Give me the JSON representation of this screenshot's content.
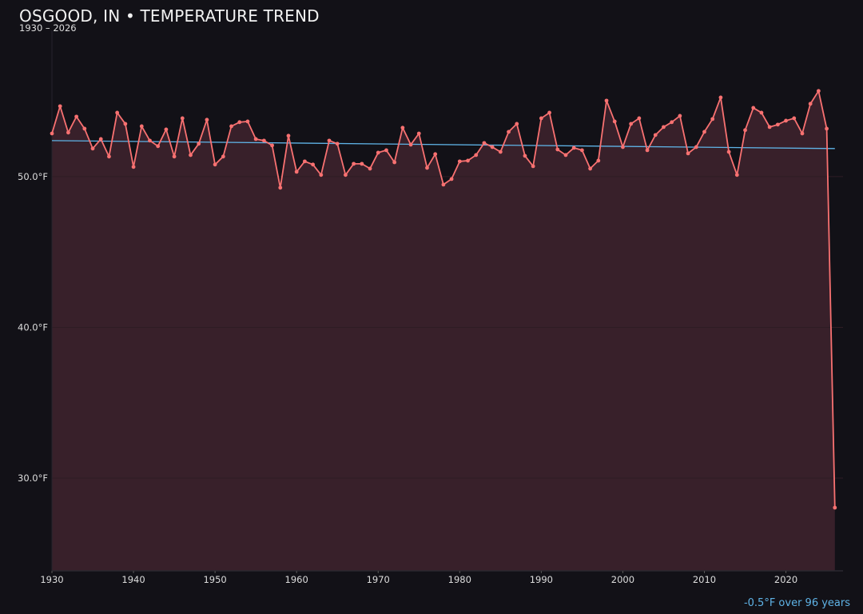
{
  "chart_data": {
    "type": "line",
    "title": "OSGOOD, IN • TEMPERATURE TREND",
    "subtitle": "1930 – 2026",
    "annotation": "-0.5°F over 96 years",
    "xlabel": "",
    "ylabel": "",
    "xlim": [
      1930,
      2027
    ],
    "ylim": [
      23.85,
      59.7
    ],
    "x_ticks": [
      "1930",
      "1940",
      "1950",
      "1960",
      "1970",
      "1980",
      "1990",
      "2000",
      "2010",
      "2020"
    ],
    "y_ticks": [
      {
        "value": 50,
        "label": "50.0°F"
      },
      {
        "value": 40,
        "label": "40.0°F"
      },
      {
        "value": 30,
        "label": "30.0°F"
      }
    ],
    "grid": "horizontal",
    "x": [
      1930,
      1931,
      1932,
      1933,
      1934,
      1935,
      1936,
      1937,
      1938,
      1939,
      1940,
      1941,
      1942,
      1943,
      1944,
      1945,
      1946,
      1947,
      1948,
      1949,
      1950,
      1951,
      1952,
      1953,
      1954,
      1955,
      1956,
      1957,
      1958,
      1959,
      1960,
      1961,
      1962,
      1963,
      1964,
      1965,
      1966,
      1967,
      1968,
      1969,
      1970,
      1971,
      1972,
      1973,
      1974,
      1975,
      1976,
      1977,
      1978,
      1979,
      1980,
      1981,
      1982,
      1983,
      1984,
      1985,
      1986,
      1987,
      1988,
      1989,
      1990,
      1991,
      1992,
      1993,
      1994,
      1995,
      1996,
      1997,
      1998,
      1999,
      2000,
      2001,
      2002,
      2003,
      2004,
      2005,
      2006,
      2007,
      2008,
      2009,
      2010,
      2011,
      2012,
      2013,
      2014,
      2015,
      2016,
      2017,
      2018,
      2019,
      2020,
      2021,
      2022,
      2023,
      2024,
      2025,
      2026
    ],
    "series": [
      {
        "values": [
          52.86,
          54.67,
          52.92,
          53.98,
          53.18,
          51.86,
          52.49,
          51.33,
          54.24,
          53.5,
          50.64,
          53.34,
          52.39,
          52.02,
          53.13,
          51.33,
          53.87,
          51.43,
          52.18,
          53.77,
          50.8,
          51.33,
          53.34,
          53.61,
          53.66,
          52.49,
          52.39,
          52.07,
          49.26,
          52.71,
          50.32,
          51.01,
          50.8,
          50.11,
          52.39,
          52.18,
          50.11,
          50.85,
          50.85,
          50.53,
          51.59,
          51.75,
          50.95,
          53.24,
          52.12,
          52.86,
          50.58,
          51.49,
          49.47,
          49.84,
          51.01,
          51.06,
          51.43,
          52.23,
          51.96,
          51.64,
          52.97,
          53.5,
          51.38,
          50.69,
          53.87,
          54.24,
          51.8,
          51.43,
          51.91,
          51.75,
          50.53,
          51.06,
          55.04,
          53.66,
          51.96,
          53.5,
          53.87,
          51.75,
          52.76,
          53.29,
          53.61,
          54.03,
          51.54,
          51.96,
          52.97,
          53.82,
          55.25,
          51.64,
          50.11,
          53.08,
          54.56,
          54.24,
          53.29,
          53.45,
          53.71,
          53.87,
          52.86,
          54.83,
          55.68,
          53.18,
          28.04
        ]
      }
    ],
    "trend": {
      "start": [
        1930,
        52.39
      ],
      "end": [
        2026,
        51.86
      ]
    },
    "colors": {
      "background": "#121117",
      "line": "#f87171",
      "fill": "#38202a",
      "trend": "#5fb3e6",
      "grid": "#2e1c24"
    }
  }
}
